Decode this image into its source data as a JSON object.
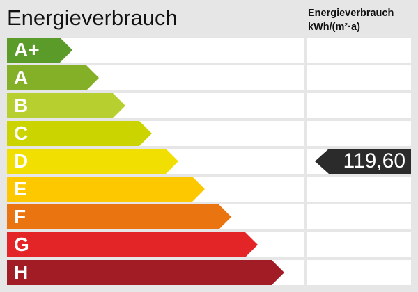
{
  "title": "Energieverbrauch",
  "column_header": {
    "line1": "Energieverbrauch",
    "line2": "kWh/(m²·a)"
  },
  "classes": [
    {
      "label": "A+",
      "color": "#5a9b2a"
    },
    {
      "label": "A",
      "color": "#84b027"
    },
    {
      "label": "B",
      "color": "#b8cf30"
    },
    {
      "label": "C",
      "color": "#ccd400"
    },
    {
      "label": "D",
      "color": "#f0df00"
    },
    {
      "label": "E",
      "color": "#fdc800"
    },
    {
      "label": "F",
      "color": "#ea7410"
    },
    {
      "label": "G",
      "color": "#e32528"
    },
    {
      "label": "H",
      "color": "#a11c24"
    }
  ],
  "marker": {
    "value": "119,60",
    "class": "D",
    "color": "#2b2b2b"
  }
}
